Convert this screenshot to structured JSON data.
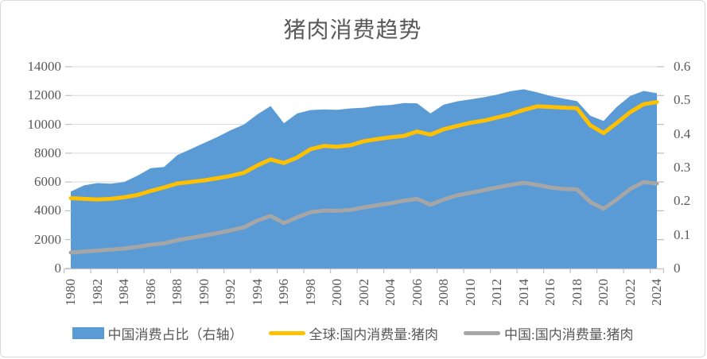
{
  "title": "猪肉消费趋势",
  "colors": {
    "area_blue": "#5B9BD5",
    "line_yellow": "#FFC000",
    "line_gray": "#A6A6A6",
    "gridline": "#D9D9D9",
    "axis": "#BFBFBF",
    "text": "#595959",
    "border": "#D9D9D9"
  },
  "left_axis": {
    "tick_labels": [
      "0",
      "2000",
      "4000",
      "6000",
      "8000",
      "10000",
      "12000",
      "14000"
    ],
    "values": [
      0,
      2000,
      4000,
      6000,
      8000,
      10000,
      12000,
      14000
    ],
    "min": 0,
    "max": 14000
  },
  "right_axis": {
    "tick_labels": [
      "0",
      "0.1",
      "0.2",
      "0.3",
      "0.4",
      "0.5",
      "0.6"
    ],
    "values": [
      0,
      0.1,
      0.2,
      0.3,
      0.4,
      0.5,
      0.6
    ],
    "min": 0,
    "max": 0.6
  },
  "x_axis": {
    "tick_labels": [
      "1980",
      "1982",
      "1984",
      "1986",
      "1988",
      "1990",
      "1992",
      "1994",
      "1996",
      "1998",
      "2000",
      "2002",
      "2004",
      "2006",
      "2008",
      "2010",
      "2012",
      "2014",
      "2016",
      "2018",
      "2020",
      "2022",
      "2024"
    ]
  },
  "legend": [
    {
      "label": "中国消费占比（右轴）",
      "swatch": "rect",
      "color": "#5B9BD5"
    },
    {
      "label": "全球:国内消费量:猪肉",
      "swatch": "line",
      "color": "#FFC000"
    },
    {
      "label": "中国:国内消费量:猪肉",
      "swatch": "line",
      "color": "#A6A6A6"
    }
  ],
  "chart_data": {
    "type": "combo: area + 2 lines",
    "title": "猪肉消费趋势",
    "x": [
      1980,
      1981,
      1982,
      1983,
      1984,
      1985,
      1986,
      1987,
      1988,
      1989,
      1990,
      1991,
      1992,
      1993,
      1994,
      1995,
      1996,
      1997,
      1998,
      1999,
      2000,
      2001,
      2002,
      2003,
      2004,
      2005,
      2006,
      2007,
      2008,
      2009,
      2010,
      2011,
      2012,
      2013,
      2014,
      2015,
      2016,
      2017,
      2018,
      2019,
      2020,
      2021,
      2022,
      2023,
      2024
    ],
    "left_ylim": [
      0,
      14000
    ],
    "right_ylim": [
      0,
      0.6
    ],
    "grid": "horizontal",
    "legend_position": "bottom",
    "series": [
      {
        "name": "中国消费占比（右轴）",
        "type": "area",
        "axis": "right",
        "color": "#5B9BD5",
        "values": [
          0.229,
          0.247,
          0.254,
          0.252,
          0.257,
          0.276,
          0.298,
          0.302,
          0.337,
          0.355,
          0.373,
          0.391,
          0.411,
          0.428,
          0.458,
          0.483,
          0.432,
          0.461,
          0.471,
          0.473,
          0.472,
          0.476,
          0.478,
          0.484,
          0.486,
          0.492,
          0.491,
          0.461,
          0.487,
          0.497,
          0.503,
          0.509,
          0.517,
          0.527,
          0.533,
          0.524,
          0.513,
          0.505,
          0.498,
          0.454,
          0.439,
          0.481,
          0.513,
          0.528,
          0.521
        ]
      },
      {
        "name": "全球:国内消费量:猪肉",
        "type": "line",
        "axis": "left",
        "color": "#FFC000",
        "values": [
          4880,
          4830,
          4790,
          4830,
          4940,
          5100,
          5380,
          5620,
          5900,
          6000,
          6110,
          6260,
          6420,
          6650,
          7150,
          7560,
          7320,
          7700,
          8280,
          8500,
          8450,
          8550,
          8830,
          8980,
          9100,
          9200,
          9500,
          9290,
          9660,
          9890,
          10110,
          10260,
          10480,
          10700,
          11000,
          11250,
          11210,
          11160,
          11120,
          9930,
          9400,
          10110,
          10850,
          11400,
          11550
        ]
      },
      {
        "name": "中国:国内消费量:猪肉",
        "type": "line",
        "axis": "left",
        "color": "#A6A6A6",
        "values": [
          1100,
          1170,
          1240,
          1310,
          1380,
          1500,
          1650,
          1750,
          1960,
          2120,
          2280,
          2450,
          2640,
          2860,
          3320,
          3650,
          3150,
          3550,
          3900,
          4020,
          4000,
          4060,
          4240,
          4390,
          4520,
          4700,
          4830,
          4420,
          4790,
          5070,
          5250,
          5430,
          5620,
          5800,
          5950,
          5800,
          5620,
          5520,
          5490,
          4610,
          4150,
          4790,
          5520,
          5990,
          5890
        ]
      }
    ]
  }
}
